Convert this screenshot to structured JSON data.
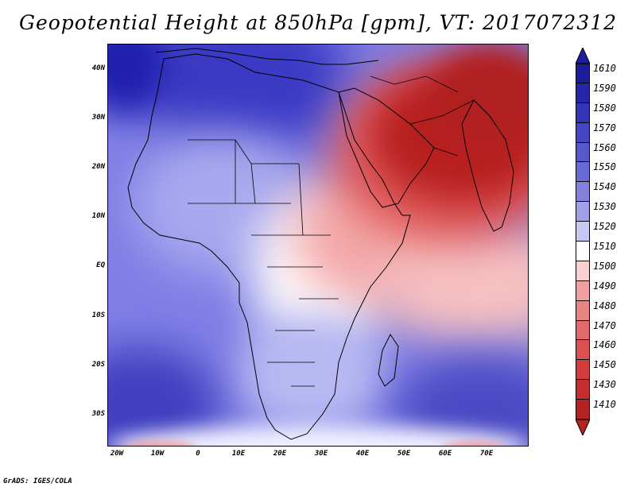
{
  "title": "Geopotential Height at 850hPa [gpm], VT: 2017072312",
  "footer": "GrADS: IGES/COLA",
  "map": {
    "lat_labels": [
      "40N",
      "30N",
      "20N",
      "10N",
      "EQ",
      "10S",
      "20S",
      "30S"
    ],
    "lon_labels": [
      "20W",
      "10W",
      "0",
      "10E",
      "20E",
      "30E",
      "40E",
      "50E",
      "60E",
      "70E"
    ],
    "colors": {
      "deep_blue": "#2020b0",
      "mid_blue": "#6060d8",
      "light_blue": "#b0b0f0",
      "white": "#ffffff",
      "light_red": "#f3a8a8",
      "mid_red": "#e05a5a",
      "deep_red": "#b82020"
    }
  },
  "colorbar": {
    "labels": [
      "1610",
      "1590",
      "1580",
      "1570",
      "1560",
      "1550",
      "1540",
      "1530",
      "1520",
      "1510",
      "1500",
      "1490",
      "1480",
      "1470",
      "1460",
      "1450",
      "1430",
      "1410"
    ],
    "colors": [
      "#1c1c9c",
      "#2626a8",
      "#3434b8",
      "#4646c4",
      "#5858cc",
      "#6a6ad4",
      "#8282dc",
      "#a0a0e8",
      "#c8c8f4",
      "#ffffff",
      "#f8d0d0",
      "#f0a0a0",
      "#e88484",
      "#e26a6a",
      "#dc5050",
      "#d23c3c",
      "#c42e2e",
      "#b42222"
    ]
  }
}
